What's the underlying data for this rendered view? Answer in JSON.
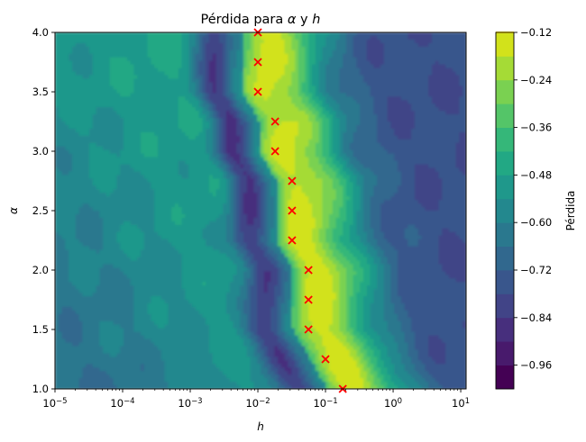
{
  "chart_data": {
    "type": "heatmap",
    "title": "Pérdida para α y h",
    "title_parts": [
      "Pérdida para ",
      "α",
      " y ",
      "h"
    ],
    "xlabel": "h",
    "ylabel": "α",
    "x_scale": "log",
    "xlim": [
      1e-05,
      12
    ],
    "ylim": [
      1.0,
      4.0
    ],
    "x_ticks": [
      {
        "value": 1e-05,
        "base": "10",
        "exp": "−5"
      },
      {
        "value": 0.0001,
        "base": "10",
        "exp": "−4"
      },
      {
        "value": 0.001,
        "base": "10",
        "exp": "−3"
      },
      {
        "value": 0.01,
        "base": "10",
        "exp": "−2"
      },
      {
        "value": 0.1,
        "base": "10",
        "exp": "−1"
      },
      {
        "value": 1,
        "base": "10",
        "exp": "0"
      },
      {
        "value": 10,
        "base": "10",
        "exp": "1"
      }
    ],
    "y_ticks": [
      "1.0",
      "1.5",
      "2.0",
      "2.5",
      "3.0",
      "3.5",
      "4.0"
    ],
    "colorbar": {
      "label": "Pérdida",
      "range": [
        -1.02,
        -0.12
      ],
      "levels": [
        -1.02,
        -0.96,
        -0.9,
        -0.84,
        -0.78,
        -0.72,
        -0.66,
        -0.6,
        -0.54,
        -0.48,
        -0.42,
        -0.36,
        -0.3,
        -0.24,
        -0.18,
        -0.12
      ],
      "tick_values": [
        -0.12,
        -0.24,
        -0.36,
        -0.48,
        -0.6,
        -0.72,
        -0.84,
        -0.96
      ],
      "tick_labels": [
        "−0.12",
        "−0.24",
        "−0.36",
        "−0.48",
        "−0.60",
        "−0.72",
        "−0.84",
        "−0.96"
      ],
      "colors": [
        "#440154",
        "#481a6c",
        "#472f7d",
        "#414487",
        "#39568c",
        "#31688e",
        "#2a788e",
        "#23888e",
        "#1f988b",
        "#22a884",
        "#35b779",
        "#54c568",
        "#7ad151",
        "#a5db36",
        "#d2e21b",
        "#fde725"
      ]
    },
    "minima_markers": {
      "color": "#ff0000",
      "points": [
        {
          "h": 0.18,
          "alpha": 1.0
        },
        {
          "h": 0.1,
          "alpha": 1.25
        },
        {
          "h": 0.056,
          "alpha": 1.5
        },
        {
          "h": 0.056,
          "alpha": 1.75
        },
        {
          "h": 0.056,
          "alpha": 2.0
        },
        {
          "h": 0.032,
          "alpha": 2.25
        },
        {
          "h": 0.032,
          "alpha": 2.5
        },
        {
          "h": 0.032,
          "alpha": 2.75
        },
        {
          "h": 0.018,
          "alpha": 3.0
        },
        {
          "h": 0.018,
          "alpha": 3.25
        },
        {
          "h": 0.01,
          "alpha": 3.5
        },
        {
          "h": 0.01,
          "alpha": 3.75
        },
        {
          "h": 0.01,
          "alpha": 4.0
        }
      ]
    }
  }
}
